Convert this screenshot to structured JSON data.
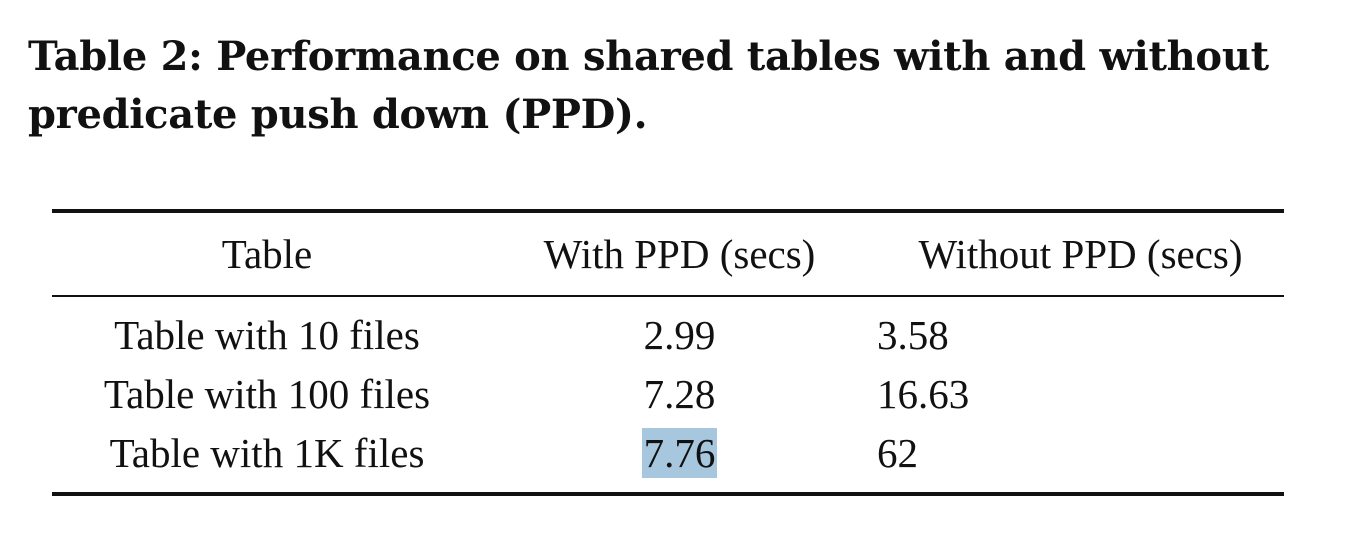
{
  "caption": "Table 2: Performance on shared tables with and without predicate push down (PPD).",
  "table": {
    "headers": [
      "Table",
      "With PPD (secs)",
      "Without PPD (secs)"
    ],
    "rows": [
      [
        "Table with 10 files",
        "2.99",
        "3.58"
      ],
      [
        "Table with 100 files",
        "7.28",
        "16.63"
      ],
      [
        "Table with 1K files",
        "7.76",
        "62"
      ]
    ],
    "highlight_color": "#a7c7de"
  }
}
